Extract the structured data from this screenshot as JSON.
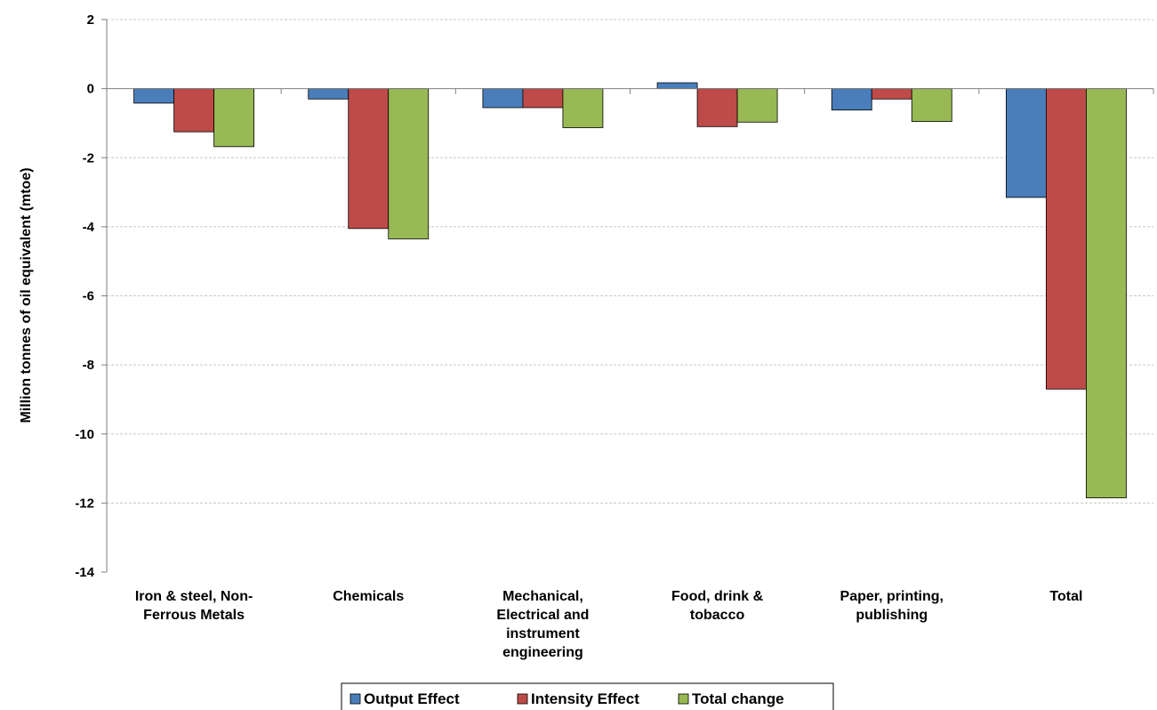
{
  "chart_data": {
    "type": "bar",
    "title": "",
    "xlabel": "",
    "ylabel": "Million  tonnes of oil equivalent (mtoe)",
    "ylim": [
      -14,
      2
    ],
    "yticks": [
      "2",
      "0",
      "-2",
      "-4",
      "-6",
      "-8",
      "-10",
      "-12",
      "-14"
    ],
    "grid": true,
    "legend_position": "bottom",
    "categories": [
      [
        "Iron & steel, Non-",
        "Ferrous Metals"
      ],
      [
        "Chemicals"
      ],
      [
        "Mechanical,",
        "Electrical and",
        "instrument",
        "engineering"
      ],
      [
        "Food, drink &",
        "tobacco"
      ],
      [
        "Paper, printing,",
        "publishing"
      ],
      [
        "Total"
      ]
    ],
    "series": [
      {
        "name": "Output Effect",
        "color": "#4a7ebb",
        "values": [
          -0.42,
          -0.3,
          -0.55,
          0.17,
          -0.62,
          -3.15
        ]
      },
      {
        "name": "Intensity Effect",
        "color": "#be4b48",
        "values": [
          -1.25,
          -4.05,
          -0.55,
          -1.1,
          -0.3,
          -8.7
        ]
      },
      {
        "name": "Total change",
        "color": "#98b954",
        "values": [
          -1.68,
          -4.35,
          -1.13,
          -0.97,
          -0.95,
          -11.85
        ]
      }
    ]
  }
}
